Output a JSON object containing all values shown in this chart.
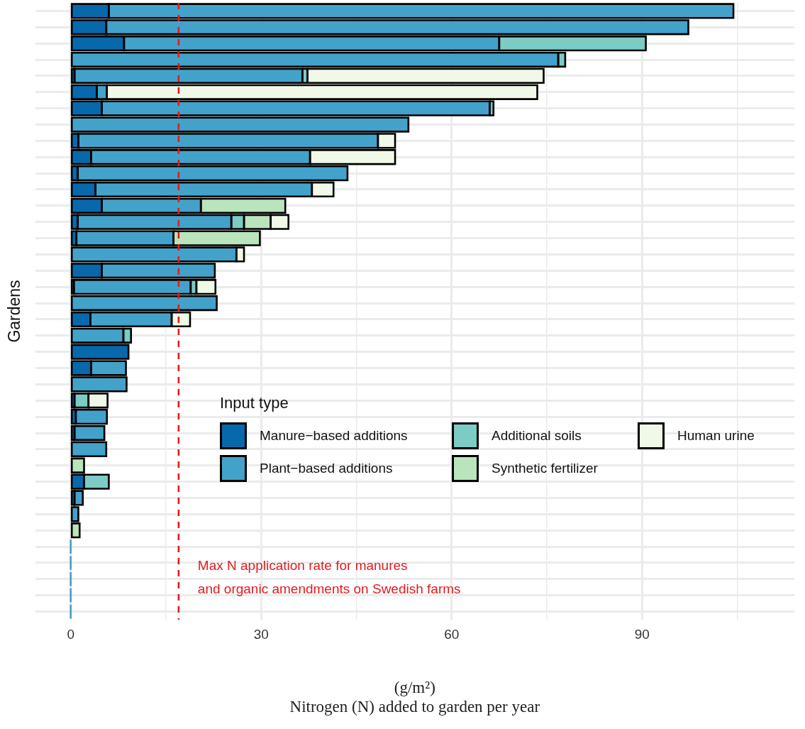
{
  "chart_data": {
    "type": "bar",
    "orientation": "horizontal",
    "stacked": true,
    "xlabel": "(g/m²)\nNitrogen (N) added to garden per year",
    "ylabel": "Gardens",
    "legend_title": "Input type",
    "legend": "bottom right",
    "grid": true,
    "tick_labels": "x",
    "categories": [
      null,
      null,
      null,
      null,
      null,
      null,
      null,
      null,
      null,
      null,
      null,
      null,
      null,
      null,
      null,
      null,
      null,
      null,
      null,
      null,
      null,
      null,
      null,
      null,
      null,
      null,
      null,
      null,
      null,
      null,
      null,
      null,
      null,
      null,
      null,
      null,
      null,
      null
    ],
    "xlim": [
      -5.6,
      114
    ],
    "xticks": [
      0,
      {
        "value": 15,
        "label": null
      },
      30,
      {
        "value": 45,
        "label": null
      },
      60,
      {
        "value": 75,
        "label": null
      },
      90,
      {
        "value": 105,
        "label": null
      }
    ],
    "series": [
      {
        "name": "Manure−based additions",
        "color": "#0868ac",
        "values": [
          6.0,
          5.6,
          8.4,
          null,
          0.6,
          4.1,
          4.9,
          null,
          1.2,
          3.2,
          1.1,
          3.9,
          4.9,
          1.1,
          0.9,
          null,
          4.9,
          0.5,
          null,
          3.1,
          null,
          9.1,
          3.2,
          null,
          0.6,
          0.8,
          0.6,
          null,
          null,
          2.1,
          0.6,
          null,
          null,
          null,
          null,
          null,
          null,
          null
        ]
      },
      {
        "name": "Plant−based additions",
        "color": "#43a2ca",
        "values": [
          98.4,
          91.7,
          59.1,
          76.8,
          35.9,
          1.6,
          61.1,
          53.2,
          47.2,
          34.5,
          42.5,
          34.1,
          15.6,
          24.2,
          15.3,
          26.1,
          17.8,
          18.4,
          23.0,
          12.8,
          8.3,
          null,
          5.5,
          8.8,
          null,
          4.9,
          4.7,
          5.6,
          null,
          null,
          1.3,
          1.2,
          null,
          0,
          0,
          0,
          0,
          0
        ]
      },
      {
        "name": "Additional soils",
        "color": "#7bccc4",
        "values": [
          null,
          null,
          23.1,
          1.1,
          0.8,
          null,
          0.6,
          null,
          null,
          null,
          null,
          null,
          null,
          2.0,
          null,
          null,
          null,
          0.9,
          null,
          null,
          1.2,
          null,
          null,
          null,
          2.2,
          null,
          null,
          null,
          null,
          3.9,
          null,
          null,
          null,
          null,
          null,
          null,
          null,
          null
        ]
      },
      {
        "name": "Synthetic fertilizer",
        "color": "#bae4bc",
        "values": [
          null,
          null,
          null,
          null,
          null,
          null,
          null,
          null,
          null,
          null,
          null,
          null,
          13.3,
          4.2,
          13.6,
          null,
          null,
          null,
          null,
          null,
          null,
          null,
          null,
          null,
          null,
          null,
          null,
          null,
          2.1,
          null,
          null,
          null,
          1.4,
          null,
          null,
          null,
          null,
          null
        ]
      },
      {
        "name": "Human urine",
        "color": "#f0f9e8",
        "values": [
          null,
          null,
          null,
          null,
          37.2,
          67.8,
          null,
          null,
          2.7,
          13.4,
          null,
          3.4,
          null,
          2.8,
          null,
          1.2,
          null,
          3.0,
          null,
          2.9,
          null,
          null,
          null,
          null,
          3.0,
          null,
          null,
          null,
          null,
          null,
          null,
          null,
          null,
          null,
          null,
          null,
          null,
          null
        ]
      }
    ],
    "ref_lines": [
      {
        "axis": "x",
        "value": 17,
        "label": "Max N application rate for manures\nand organic amendments on Swedish farms",
        "color": "#e41a1c",
        "line_style": "dashed"
      }
    ]
  }
}
